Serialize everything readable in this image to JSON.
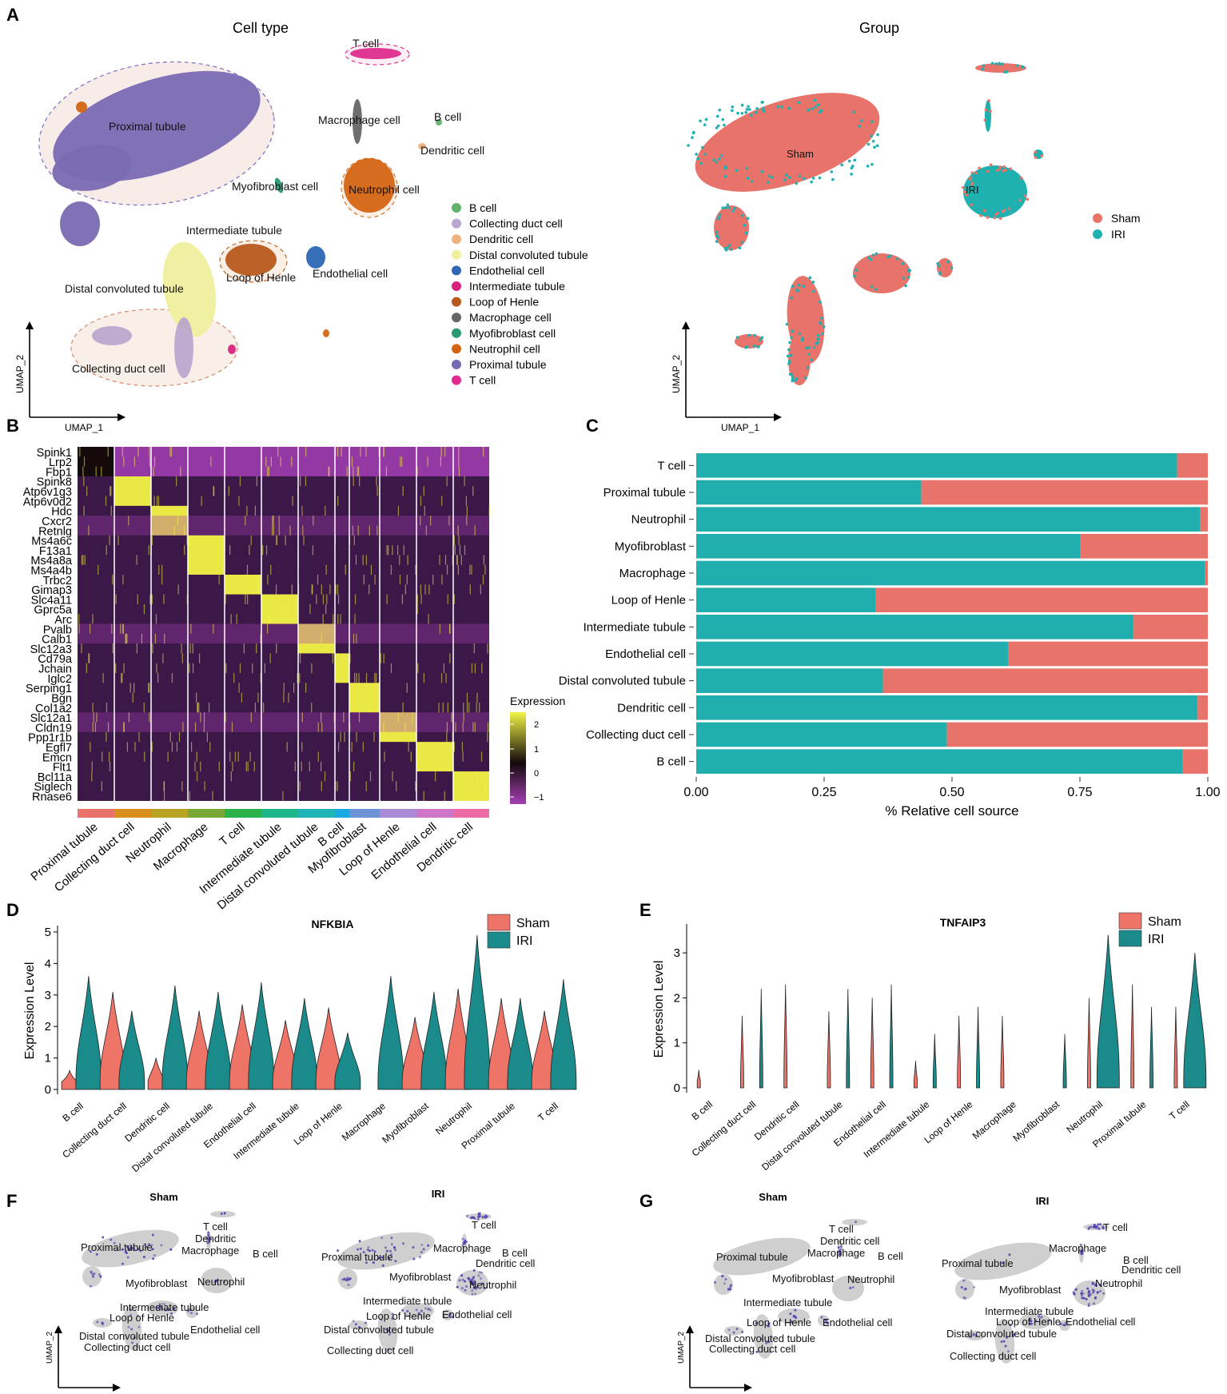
{
  "panel_letters": {
    "a": "A",
    "b": "B",
    "c": "C",
    "d": "D",
    "e": "E",
    "f": "F",
    "g": "G"
  },
  "colors": {
    "sham": "#e8736a",
    "iri": "#1fb0b0",
    "sham_violin": "#ee7468",
    "iri_violin": "#1b8a8a",
    "bar_iri": "#21aeae",
    "bar_sham": "#e8736a",
    "heat_low": "#a53fb5",
    "heat_mid": "#120a0a",
    "heat_high": "#f3f346",
    "heat_bg": "#3b1848",
    "feature_low": "#cfcfcf",
    "feature_high": "#5542b0"
  },
  "umap": {
    "x_label": "UMAP_1",
    "y_label": "UMAP_2"
  },
  "cell_types": [
    {
      "name": "B cell",
      "color": "#5fb36a"
    },
    {
      "name": "Collecting duct cell",
      "color": "#b9a7cf"
    },
    {
      "name": "Dendritic cell",
      "color": "#efb080"
    },
    {
      "name": "Distal convoluted tubule",
      "color": "#efef9e"
    },
    {
      "name": "Endothelial cell",
      "color": "#2d67b5"
    },
    {
      "name": "Intermediate tubule",
      "color": "#d9237f"
    },
    {
      "name": "Loop of Henle",
      "color": "#b8591c"
    },
    {
      "name": "Macrophage cell",
      "color": "#666666"
    },
    {
      "name": "Myofibroblast cell",
      "color": "#2a9a72"
    },
    {
      "name": "Neutrophil cell",
      "color": "#d46513"
    },
    {
      "name": "Proximal tubule",
      "color": "#7a6ab3"
    },
    {
      "name": "T cell",
      "color": "#df2c8e"
    }
  ],
  "panel_a": {
    "left_title": "Cell type",
    "right_title": "Group",
    "cluster_labels": {
      "t_cell": "T cell",
      "proximal_tubule": "Proximal tubule",
      "macrophage": "Macrophage cell",
      "b_cell": "B cell",
      "dendritic": "Dendritic cell",
      "myofibroblast": "Myofibroblast cell",
      "neutrophil": "Neutrophil cell",
      "intermediate": "Intermediate tubule",
      "loop": "Loop of Henle",
      "endothelial": "Endothelial cell",
      "distal": "Distal convoluted tubule",
      "collecting": "Collecting duct cell"
    },
    "group_labels": {
      "sham": "Sham",
      "iri": "IRI"
    },
    "group_legend": [
      {
        "name": "Sham"
      },
      {
        "name": "IRI"
      }
    ]
  },
  "panel_b": {
    "genes": [
      "Spink1",
      "Lrp2",
      "Fbp1",
      "Spink8",
      "Atp6v1g3",
      "Atp6v0d2",
      "Hdc",
      "Cxcr2",
      "Retnlg",
      "Ms4a6c",
      "F13a1",
      "Ms4a8a",
      "Ms4a4b",
      "Trbc2",
      "Gimap3",
      "Slc4a11",
      "Gprc5a",
      "Arc",
      "Pvalb",
      "Calb1",
      "Slc12a3",
      "Cd79a",
      "Jchain",
      "Iglc2",
      "Serping1",
      "Bgn",
      "Col1a2",
      "Slc12a1",
      "Cldn19",
      "Ppp1r1b",
      "Egfl7",
      "Emcn",
      "Flt1",
      "Bcl11a",
      "Siglech",
      "Rnase6"
    ],
    "groups": [
      {
        "name": "Proximal tubule",
        "color": "#e8736a"
      },
      {
        "name": "Collecting duct cell",
        "color": "#d98f1e"
      },
      {
        "name": "Neutrophil",
        "color": "#b9a325"
      },
      {
        "name": "Macrophage",
        "color": "#78a936"
      },
      {
        "name": "T cell",
        "color": "#2bb24a"
      },
      {
        "name": "Intermediate tubule",
        "color": "#1fb58a"
      },
      {
        "name": "Distal convoluted tubule",
        "color": "#1fb5b8"
      },
      {
        "name": "B cell",
        "color": "#19a9e0"
      },
      {
        "name": "Myofibroblast",
        "color": "#6d92d6"
      },
      {
        "name": "Loop of Henle",
        "color": "#a98bd8"
      },
      {
        "name": "Endothelial cell",
        "color": "#cf76c8"
      },
      {
        "name": "Dendritic cell",
        "color": "#ec6aa5"
      }
    ],
    "legend_title": "Expression",
    "legend_ticks": [
      "2",
      "1",
      "0",
      "−1"
    ]
  },
  "chart_data": [
    {
      "type": "bar",
      "orientation": "horizontal",
      "stacked": true,
      "title": "",
      "xlabel": "% Relative cell source",
      "ylabel": "",
      "xlim": [
        0,
        1
      ],
      "x_ticks": [
        "0.00",
        "0.25",
        "0.50",
        "0.75",
        "1.00"
      ],
      "categories": [
        "T cell",
        "Proximal tubule",
        "Neutrophil",
        "Myofibroblast",
        "Macrophage",
        "Loop of Henle",
        "Intermediate tubule",
        "Endothelial cell",
        "Distal convoluted tubule",
        "Dendritic cell",
        "Collecting duct cell",
        "B cell"
      ],
      "series": [
        {
          "name": "IRI",
          "values": [
            0.94,
            0.44,
            0.985,
            0.75,
            0.995,
            0.35,
            0.855,
            0.61,
            0.365,
            0.98,
            0.49,
            0.95
          ]
        },
        {
          "name": "Sham",
          "values": [
            0.06,
            0.56,
            0.015,
            0.25,
            0.005,
            0.65,
            0.145,
            0.39,
            0.635,
            0.02,
            0.51,
            0.05
          ]
        }
      ]
    },
    {
      "type": "violin",
      "title": "NFKBIA",
      "ylabel": "Expression Level",
      "ylim": [
        0,
        5
      ],
      "y_ticks": [
        "0",
        "1",
        "2",
        "3",
        "4",
        "5"
      ],
      "categories": [
        "B cell",
        "Collecting duct cell",
        "Dendritic cell",
        "Distal convoluted tubule",
        "Endothelial cell",
        "Intermediate tubule",
        "Loop of Henle",
        "Macrophage",
        "Myofibroblast",
        "Neutrophil",
        "Proximal tubule",
        "T cell"
      ],
      "series": [
        {
          "name": "Sham",
          "max": [
            0.6,
            3.1,
            1.0,
            2.5,
            2.7,
            2.2,
            2.6,
            null,
            2.3,
            3.2,
            2.9,
            2.5
          ]
        },
        {
          "name": "IRI",
          "max": [
            3.6,
            2.5,
            3.3,
            3.1,
            3.4,
            2.9,
            1.8,
            3.6,
            3.1,
            4.9,
            2.9,
            3.5
          ]
        }
      ],
      "legend": [
        "Sham",
        "IRI"
      ]
    },
    {
      "type": "violin",
      "title": "TNFAIP3",
      "ylabel": "Expression Level",
      "ylim": [
        0,
        3.5
      ],
      "y_ticks": [
        "0",
        "1",
        "2",
        "3"
      ],
      "categories": [
        "B cell",
        "Collecting duct cell",
        "Dendritic cell",
        "Distal convoluted tubule",
        "Endothelial cell",
        "Intermediate tubule",
        "Loop of Henle",
        "Macrophage",
        "Myofibroblast",
        "Neutrophil",
        "Proximal tubule",
        "T cell"
      ],
      "series": [
        {
          "name": "Sham",
          "max": [
            0.4,
            1.6,
            2.3,
            1.7,
            2.0,
            0.6,
            1.6,
            1.6,
            null,
            2.0,
            2.3,
            1.8
          ]
        },
        {
          "name": "IRI",
          "max": [
            null,
            2.2,
            null,
            2.2,
            2.3,
            1.2,
            1.8,
            null,
            1.2,
            3.4,
            1.8,
            3.0
          ]
        }
      ],
      "legend": [
        "Sham",
        "IRI"
      ]
    }
  ],
  "panel_f": {
    "left_title": "Sham",
    "right_title": "IRI",
    "left_labels": {
      "t_cell": "T cell",
      "dendritic": "Dendritic",
      "macrophage": "Macrophage",
      "b_cell": "B cell",
      "proximal": "Proximal tubule",
      "myofibroblast": "Myofibroblast",
      "neutrophil": "Neutrophil",
      "intermediate": "Intermediate tubule",
      "loop": "Loop of Henle",
      "endothelial": "Endothelial cell",
      "distal": "Distal convoluted tubule",
      "collecting": "Collecting duct cell"
    },
    "right_labels": {
      "t_cell": "T cell",
      "macrophage": "Macrophage",
      "b_cell": "B cell",
      "dendritic": "Dendritic cell",
      "proximal": "Proximal tubule",
      "myofibroblast": "Myofibroblast",
      "neutrophil": "Neutrophil",
      "intermediate": "Intermediate tubule",
      "loop": "Loop of Henle",
      "endothelial": "Endothelial cell",
      "distal": "Distal convoluted tubule",
      "collecting": "Collecting duct cell"
    }
  },
  "panel_g": {
    "left_title": "Sham",
    "right_title": "IRI",
    "left_labels": {
      "t_cell": "T cell",
      "dendritic": "Dendritic cell",
      "macrophage": "Macrophage",
      "b_cell": "B cell",
      "proximal": "Proximal tubule",
      "myofibroblast": "Myofibroblast",
      "neutrophil": "Neutrophil",
      "intermediate": "Intermediate tubule",
      "loop": "Loop of Henle",
      "endothelial": "Endothelial cell",
      "distal": "Distal convoluted tubule",
      "collecting": "Collecting duct cell"
    },
    "right_labels": {
      "t_cell": "T cell",
      "macrophage": "Macrophage",
      "b_cell": "B cell",
      "dendritic": "Dendritic cell",
      "proximal": "Proximal tubule",
      "myofibroblast": "Myofibroblast",
      "neutrophil": "Neutrophil",
      "intermediate": "Intermediate tubule",
      "loop": "Loop of Henle",
      "endothelial": "Endothelial cell",
      "distal": "Distal convoluted tubule",
      "collecting": "Collecting duct cell"
    }
  }
}
